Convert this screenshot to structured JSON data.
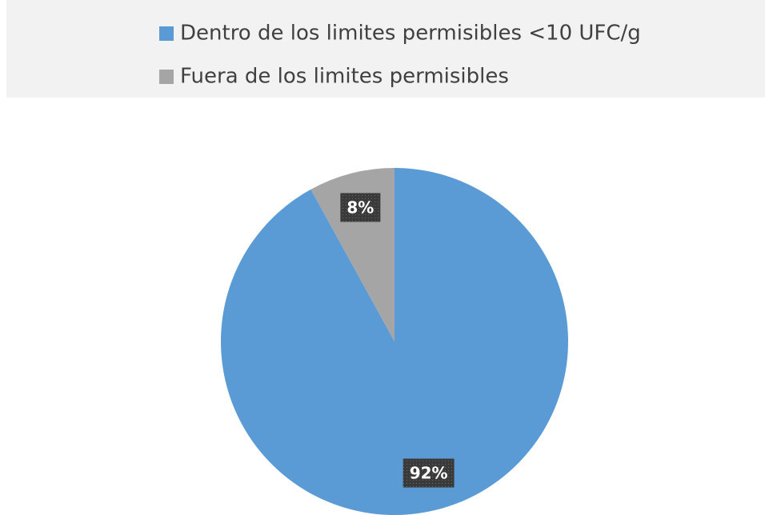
{
  "chart_data": {
    "type": "pie",
    "categories": [
      "Dentro de los limites permisibles <10 UFC/g",
      "Fuera de los limites permisibles"
    ],
    "values": [
      92,
      8
    ],
    "value_labels": [
      "92%",
      "8%"
    ],
    "colors": [
      "#5b9bd5",
      "#a5a5a5"
    ],
    "legend": "top"
  }
}
